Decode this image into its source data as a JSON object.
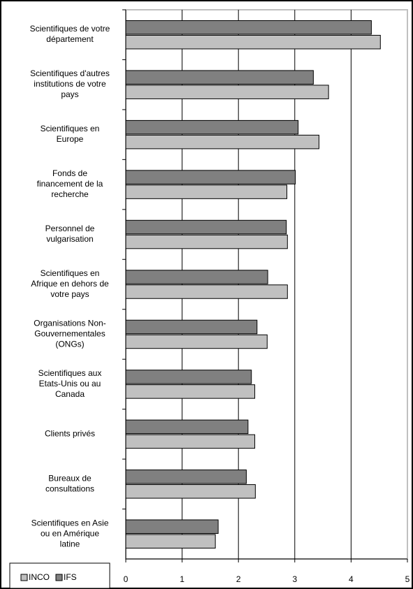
{
  "chart_data": {
    "type": "barh",
    "categories": [
      "Scientifiques de votre\ndépartement",
      "Scientifiques d'autres\ninstitutions de votre\npays",
      "Scientifiques en\nEurope",
      "Fonds de\nfinancement de la\nrecherche",
      "Personnel de\nvulgarisation",
      "Scientifiques en\nAfrique en dehors de\nvotre pays",
      "Organisations Non-\nGouvernementales\n(ONGs)",
      "Scientifiques aux\nEtats-Unis ou au\nCanada",
      "Clients privés",
      "Bureaux de\nconsultations",
      "Scientifiques en Asie\nou en Amérique\nlatine"
    ],
    "series": [
      {
        "name": "INCO",
        "color": "#c0c0c0",
        "values": [
          4.52,
          3.6,
          3.43,
          2.86,
          2.87,
          2.87,
          2.51,
          2.29,
          2.29,
          2.3,
          1.59
        ]
      },
      {
        "name": "IFS",
        "color": "#808080",
        "values": [
          4.36,
          3.33,
          3.06,
          3.01,
          2.85,
          2.52,
          2.33,
          2.23,
          2.17,
          2.14,
          1.64
        ]
      }
    ],
    "xlim": [
      0,
      5
    ],
    "xticks": [
      0,
      1,
      2,
      3,
      4,
      5
    ],
    "grid": true,
    "legend": "bottom-left"
  }
}
